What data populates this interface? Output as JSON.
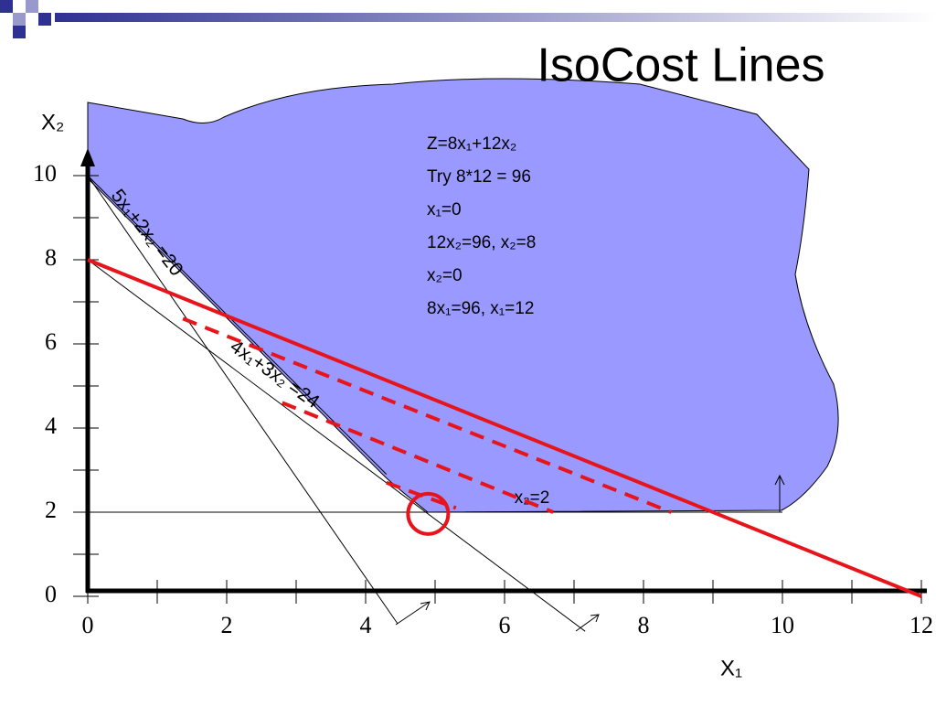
{
  "chart_data": {
    "type": "lp",
    "title": "IsoCost Lines",
    "x_label": "X₁",
    "y_label": "X₂",
    "xlim": [
      0,
      12
    ],
    "ylim": [
      0,
      10
    ],
    "xticks": [
      0,
      2,
      4,
      6,
      8,
      10,
      12
    ],
    "yticks": [
      0,
      2,
      4,
      6,
      8,
      10
    ],
    "xminor_ticks": [
      1,
      3,
      5,
      7,
      9,
      11
    ],
    "yminor_ticks": [
      1,
      3,
      5,
      7,
      9
    ],
    "series": [
      {
        "color": "#000000",
        "dash": false,
        "x": [
          0,
          4.3
        ],
        "y": [
          10,
          2.9
        ]
      },
      {
        "color": "#000000",
        "dash": false,
        "x": [
          0,
          4.46
        ],
        "y": [
          10,
          -0.65
        ]
      },
      {
        "color": "#000000",
        "dash": false,
        "x": [
          0,
          7.16
        ],
        "y": [
          8,
          -0.83
        ]
      },
      {
        "color": "#000000",
        "dash": false,
        "x": [
          0,
          10
        ],
        "y": [
          2,
          2
        ]
      },
      {
        "color": "#e8141b",
        "dash": false,
        "x": [
          0,
          12
        ],
        "y": [
          8,
          0
        ]
      },
      {
        "color": "#e8141b",
        "dash": true,
        "x": [
          1.37,
          8.4
        ],
        "y": [
          6.6,
          2.0
        ]
      },
      {
        "color": "#e8141b",
        "dash": true,
        "x": [
          2.8,
          6.7
        ],
        "y": [
          4.6,
          2.0
        ]
      },
      {
        "color": "#e8141b",
        "dash": true,
        "x": [
          4.3,
          5.3
        ],
        "y": [
          2.7,
          2.1
        ]
      }
    ],
    "optimum": {
      "x": 4.9,
      "y": 1.96,
      "color": "#e8141b"
    },
    "annotations": [
      "5x₁+2x₂ =20",
      "4x₁+3x₂ =24",
      "x₂=2"
    ],
    "notes": [
      "Z=8x₁+12x₂",
      "Try 8*12 = 96",
      "x₁=0",
      "12x₂=96, x₂=8",
      "x₂=0",
      "8x₁=96, x₁=12"
    ]
  }
}
